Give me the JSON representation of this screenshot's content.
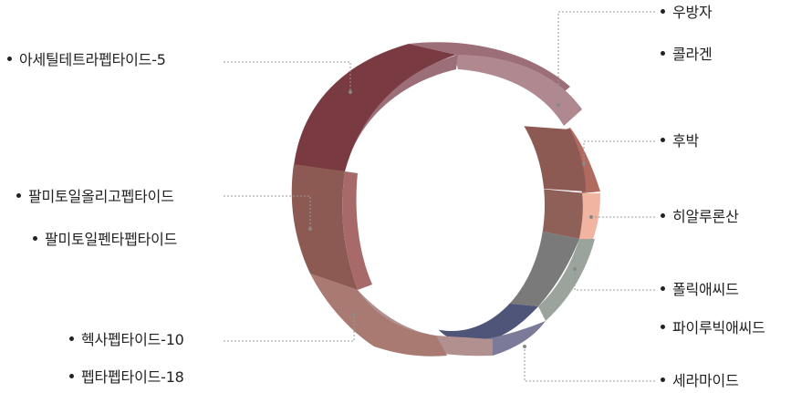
{
  "left_labels": [
    {
      "id": "acetyl",
      "text": "아세틸테트라펩타이드-5"
    },
    {
      "id": "palmitoyl-oligo",
      "text": "팔미토일올리고펩타이드"
    },
    {
      "id": "palmitoyl-penta",
      "text": "팔미토일펜타펩타이드"
    },
    {
      "id": "hexa",
      "text": "헥사펩타이드-10"
    },
    {
      "id": "hepta",
      "text": "펩타펩타이드-18"
    }
  ],
  "right_labels": [
    {
      "id": "ubangja",
      "text": "우방자"
    },
    {
      "id": "collagen",
      "text": "콜라겐"
    },
    {
      "id": "hubak",
      "text": "후박"
    },
    {
      "id": "hyaluronic",
      "text": "히알루론산"
    },
    {
      "id": "polyacid",
      "text": "폴릭애씨드"
    },
    {
      "id": "pyruvic",
      "text": "파이루빅애씨드"
    },
    {
      "id": "ceramide",
      "text": "세라마이드"
    }
  ],
  "colors": {
    "text": "#222222",
    "leader_line": "#999999",
    "segment_maroon": "#7a3a42",
    "segment_mauve": "#9c6f78",
    "segment_brown": "#8c5a52",
    "segment_salmon": "#b06a60",
    "segment_peach": "#f0b4a0",
    "segment_gray": "#7a7a7a",
    "segment_sage": "#9aa39c",
    "segment_navy": "#4f5578",
    "segment_lavender": "#7b7a98",
    "segment_rose": "#a07a78"
  }
}
